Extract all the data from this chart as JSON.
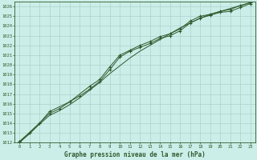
{
  "title": "Graphe pression niveau de la mer (hPa)",
  "background_color": "#cceee8",
  "grid_color": "#aad4cc",
  "line_color": "#2d5a2d",
  "xlim": [
    -0.5,
    23.5
  ],
  "ylim": [
    1012,
    1026.5
  ],
  "xticks": [
    0,
    1,
    2,
    3,
    4,
    5,
    6,
    7,
    8,
    9,
    10,
    11,
    12,
    13,
    14,
    15,
    16,
    17,
    18,
    19,
    20,
    21,
    22,
    23
  ],
  "yticks": [
    1012,
    1013,
    1014,
    1015,
    1016,
    1017,
    1018,
    1019,
    1020,
    1021,
    1022,
    1023,
    1024,
    1025,
    1026
  ],
  "series1_x": [
    0,
    1,
    2,
    3,
    4,
    5,
    6,
    7,
    8,
    9,
    10,
    11,
    12,
    13,
    14,
    15,
    16,
    17,
    18,
    19,
    20,
    21,
    22,
    23
  ],
  "series1_y": [
    1012.1,
    1013.0,
    1014.0,
    1015.0,
    1015.5,
    1016.2,
    1016.8,
    1017.5,
    1018.3,
    1019.5,
    1020.8,
    1021.4,
    1021.8,
    1022.2,
    1022.7,
    1023.0,
    1023.5,
    1024.3,
    1024.8,
    1025.1,
    1025.4,
    1025.5,
    1025.9,
    1026.3
  ],
  "series2_x": [
    0,
    1,
    2,
    3,
    4,
    5,
    6,
    7,
    8,
    9,
    10,
    11,
    12,
    13,
    14,
    15,
    16,
    17,
    18,
    19,
    20,
    21,
    22,
    23
  ],
  "series2_y": [
    1012.0,
    1012.9,
    1013.9,
    1014.8,
    1015.3,
    1015.9,
    1016.6,
    1017.4,
    1018.2,
    1019.1,
    1019.9,
    1020.7,
    1021.4,
    1022.0,
    1022.6,
    1023.2,
    1023.8,
    1024.3,
    1024.8,
    1025.2,
    1025.5,
    1025.8,
    1026.1,
    1026.4
  ],
  "series3_x": [
    0,
    2,
    3,
    5,
    7,
    8,
    9,
    10,
    11,
    12,
    13,
    14,
    15,
    16,
    17,
    18,
    19,
    20,
    21,
    22,
    23
  ],
  "series3_y": [
    1012.1,
    1014.0,
    1015.2,
    1016.2,
    1017.8,
    1018.5,
    1019.8,
    1021.0,
    1021.5,
    1022.0,
    1022.4,
    1022.9,
    1023.2,
    1023.7,
    1024.5,
    1025.0,
    1025.2,
    1025.5,
    1025.7,
    1026.1,
    1026.4
  ]
}
